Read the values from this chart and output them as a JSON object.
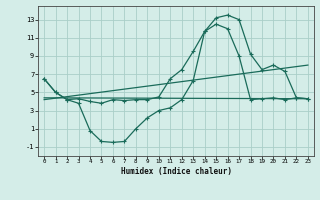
{
  "xlabel": "Humidex (Indice chaleur)",
  "background_color": "#d4ede8",
  "grid_color": "#aacfc8",
  "line_color": "#1a6b5a",
  "xlim": [
    -0.5,
    23.5
  ],
  "ylim": [
    -2.0,
    14.5
  ],
  "xticks": [
    0,
    1,
    2,
    3,
    4,
    5,
    6,
    7,
    8,
    9,
    10,
    11,
    12,
    13,
    14,
    15,
    16,
    17,
    18,
    19,
    20,
    21,
    22,
    23
  ],
  "yticks": [
    -1,
    1,
    3,
    5,
    7,
    9,
    11,
    13
  ],
  "line1_x": [
    0,
    1,
    2,
    3,
    4,
    5,
    6,
    7,
    8,
    9,
    10,
    11,
    12,
    13,
    14,
    15,
    16,
    17,
    18,
    19,
    20,
    21,
    22,
    23
  ],
  "line1_y": [
    6.5,
    5.0,
    4.2,
    4.3,
    4.0,
    3.8,
    4.2,
    4.1,
    4.2,
    4.2,
    4.5,
    6.5,
    7.5,
    9.5,
    11.7,
    13.2,
    13.5,
    13.0,
    9.2,
    7.5,
    8.0,
    7.3,
    4.4,
    4.3
  ],
  "line2_x": [
    0,
    1,
    2,
    3,
    4,
    5,
    6,
    7,
    8,
    9,
    10,
    11,
    12,
    13,
    14,
    15,
    16,
    17,
    18,
    19,
    20,
    21,
    22,
    23
  ],
  "line2_y": [
    6.5,
    5.0,
    4.2,
    3.8,
    0.8,
    -0.4,
    -0.5,
    -0.4,
    1.0,
    2.2,
    3.0,
    3.3,
    4.2,
    6.3,
    11.7,
    12.5,
    12.0,
    9.0,
    4.2,
    4.3,
    4.4,
    4.2,
    4.4,
    4.3
  ],
  "line3_x": [
    0,
    23
  ],
  "line3_y": [
    4.4,
    4.3
  ],
  "line4_x": [
    0,
    23
  ],
  "line4_y": [
    4.2,
    8.0
  ]
}
